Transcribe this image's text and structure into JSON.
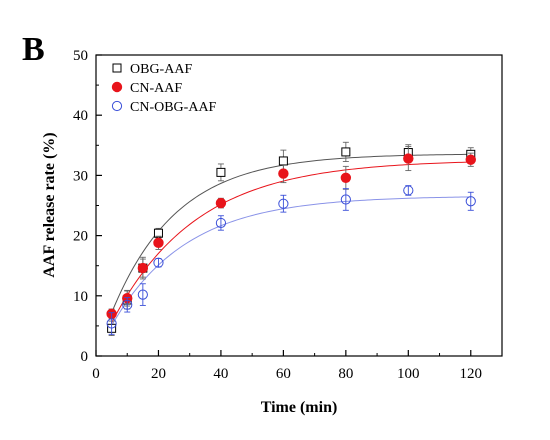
{
  "chart_data": {
    "type": "scatter",
    "panel_label": "B",
    "xlabel": "Time (min)",
    "ylabel": "AAF release rate (%)",
    "xlim": [
      0,
      130
    ],
    "ylim": [
      0,
      50
    ],
    "xticks": [
      0,
      20,
      40,
      60,
      80,
      100,
      120
    ],
    "yticks": [
      0,
      10,
      20,
      30,
      40,
      50
    ],
    "grid": false,
    "legend_position": "top-left",
    "series": [
      {
        "name": "OBG-AAF",
        "marker": "open-square",
        "color": "#000000",
        "line_color": "#555555",
        "x": [
          5,
          10,
          15,
          20,
          40,
          60,
          80,
          100,
          120
        ],
        "y": [
          4.6,
          9.3,
          14.6,
          20.4,
          30.5,
          32.4,
          33.9,
          33.8,
          33.5
        ],
        "error": [
          1.2,
          1.5,
          1.5,
          0.8,
          1.4,
          1.8,
          1.6,
          1.3,
          1.1
        ],
        "fit": {
          "plateau": 33.6,
          "rate": 0.048
        }
      },
      {
        "name": "CN-AAF",
        "marker": "filled-circle",
        "color": "#e8141b",
        "line_color": "#e8141b",
        "x": [
          5,
          10,
          15,
          20,
          40,
          60,
          80,
          100,
          120
        ],
        "y": [
          7.0,
          9.6,
          14.6,
          18.8,
          25.4,
          30.3,
          29.6,
          32.8,
          32.6
        ],
        "error": [
          0.8,
          1.3,
          1.8,
          1.1,
          0.8,
          1.5,
          1.9,
          2.0,
          1.1
        ],
        "fit": {
          "plateau": 32.6,
          "rate": 0.037
        }
      },
      {
        "name": "CN-OBG-AAF",
        "marker": "open-circle",
        "color": "#3a4fd8",
        "line_color": "#8a93e8",
        "x": [
          5,
          10,
          15,
          20,
          40,
          60,
          80,
          100,
          120
        ],
        "y": [
          5.4,
          8.5,
          10.2,
          15.5,
          22.1,
          25.3,
          26.0,
          27.5,
          25.7
        ],
        "error": [
          1.8,
          1.2,
          1.8,
          0.7,
          1.2,
          1.4,
          1.8,
          0.8,
          1.5
        ],
        "fit": {
          "plateau": 26.6,
          "rate": 0.042
        }
      }
    ]
  }
}
